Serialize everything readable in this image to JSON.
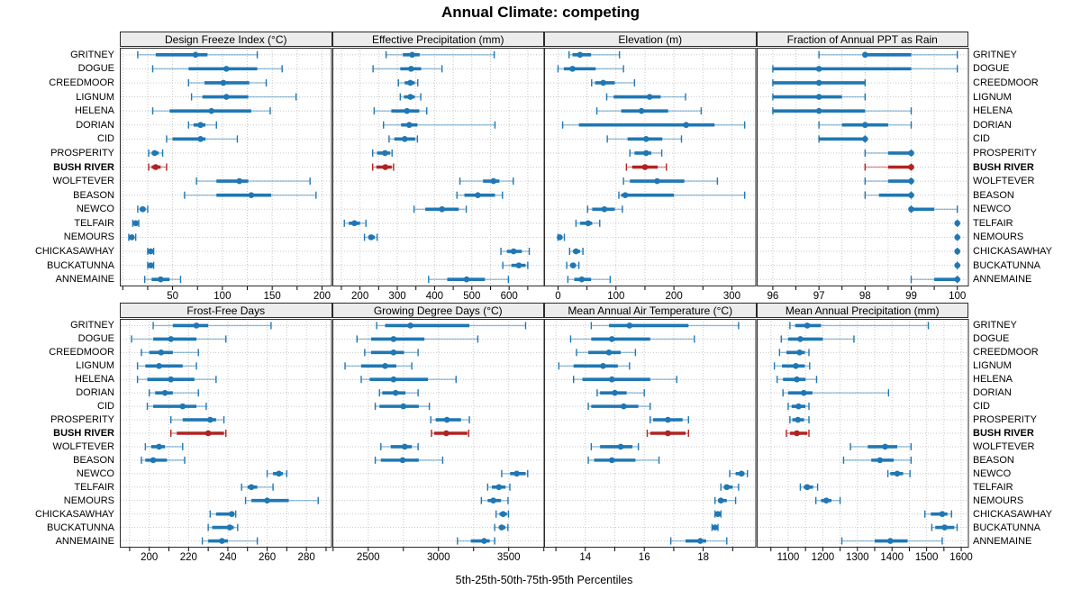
{
  "title": "Annual Climate: competing",
  "xlabel": "5th-25th-50th-75th-95th Percentiles",
  "colors": {
    "series": "#1f77b4",
    "highlight": "#b22222",
    "strip_bg": "#ececec",
    "grid": "#c8c8c8",
    "border": "#2b2b2b",
    "text": "#000000"
  },
  "highlight_site": "BUSH RIVER",
  "chart_data": {
    "type": "dotplot",
    "subtitle": "trellis of percentile ranges, 2 rows x 4 columns",
    "percentiles": [
      5,
      25,
      50,
      75,
      95
    ],
    "legend_note": "dot = median, thick bar = 25th-75th, thin bar with caps = 5th-95th",
    "sites": [
      "GRITNEY",
      "DOGUE",
      "CREEDMOOR",
      "LIGNUM",
      "HELENA",
      "DORIAN",
      "CID",
      "PROSPERITY",
      "BUSH RIVER",
      "WOLFTEVER",
      "BEASON",
      "NEWCO",
      "TELFAIR",
      "NEMOURS",
      "CHICKASAWHAY",
      "BUCKATUNNA",
      "ANNEMAINE"
    ],
    "panels": [
      {
        "title": "Design Freeze Index (°C)",
        "row": 0,
        "col": 0,
        "xlim": [
          -3,
          210
        ],
        "ticks": [
          50,
          100,
          150,
          200
        ],
        "data": [
          [
            15,
            33,
            73,
            85,
            135
          ],
          [
            30,
            66,
            104,
            135,
            160
          ],
          [
            66,
            82,
            101,
            127,
            144
          ],
          [
            69,
            80,
            104,
            126,
            174
          ],
          [
            30,
            47,
            89,
            129,
            148
          ],
          [
            66,
            71,
            78,
            83,
            94
          ],
          [
            44,
            50,
            78,
            83,
            115
          ],
          [
            26,
            29,
            32,
            36,
            40
          ],
          [
            26,
            29,
            33,
            38,
            44
          ],
          [
            74,
            94,
            117,
            126,
            188
          ],
          [
            62,
            94,
            129,
            149,
            194
          ],
          [
            15,
            17,
            20,
            23,
            25
          ],
          [
            10,
            11,
            13,
            14,
            16
          ],
          [
            6,
            8,
            9,
            11,
            13
          ],
          [
            25,
            27,
            28,
            30,
            31
          ],
          [
            25,
            26,
            28,
            30,
            31
          ],
          [
            22,
            29,
            38,
            47,
            58
          ]
        ]
      },
      {
        "title": "Effective Precipitation (mm)",
        "row": 0,
        "col": 1,
        "xlim": [
          126,
          695
        ],
        "ticks": [
          200,
          300,
          400,
          500,
          600
        ],
        "data": [
          [
            270,
            315,
            340,
            360,
            560
          ],
          [
            235,
            308,
            337,
            364,
            420
          ],
          [
            303,
            320,
            335,
            347,
            355
          ],
          [
            308,
            318,
            335,
            347,
            363
          ],
          [
            238,
            284,
            326,
            359,
            379
          ],
          [
            263,
            310,
            332,
            354,
            562
          ],
          [
            278,
            292,
            320,
            348,
            354
          ],
          [
            234,
            246,
            267,
            281,
            286
          ],
          [
            234,
            244,
            268,
            285,
            290
          ],
          [
            468,
            530,
            558,
            574,
            611
          ],
          [
            460,
            480,
            516,
            562,
            582
          ],
          [
            345,
            375,
            420,
            465,
            485
          ],
          [
            158,
            170,
            185,
            200,
            216
          ],
          [
            212,
            222,
            230,
            240,
            246
          ],
          [
            578,
            594,
            612,
            634,
            654
          ],
          [
            583,
            606,
            626,
            644,
            650
          ],
          [
            384,
            434,
            486,
            535,
            598
          ]
        ]
      },
      {
        "title": "Elevation (m)",
        "row": 0,
        "col": 2,
        "xlim": [
          -24,
          342
        ],
        "ticks": [
          0,
          100,
          200,
          300
        ],
        "data": [
          [
            19,
            25,
            38,
            57,
            106
          ],
          [
            0,
            10,
            25,
            65,
            113
          ],
          [
            58,
            64,
            78,
            98,
            132
          ],
          [
            84,
            96,
            158,
            177,
            220
          ],
          [
            67,
            109,
            144,
            190,
            247
          ],
          [
            8,
            36,
            221,
            270,
            322
          ],
          [
            85,
            120,
            152,
            180,
            213
          ],
          [
            124,
            132,
            152,
            161,
            179
          ],
          [
            118,
            128,
            150,
            172,
            187
          ],
          [
            113,
            124,
            171,
            218,
            275
          ],
          [
            105,
            109,
            116,
            200,
            322
          ],
          [
            51,
            59,
            80,
            98,
            111
          ],
          [
            31,
            38,
            52,
            59,
            72
          ],
          [
            0,
            1,
            3,
            6,
            11
          ],
          [
            20,
            26,
            31,
            38,
            43
          ],
          [
            15,
            21,
            26,
            31,
            36
          ],
          [
            17,
            28,
            41,
            57,
            90
          ]
        ]
      },
      {
        "title": "Fraction of Annual PPT as Rain",
        "row": 0,
        "col": 3,
        "xlim": [
          95.65,
          100.25
        ],
        "ticks": [
          96,
          97,
          98,
          99,
          100
        ],
        "data": [
          [
            97,
            98,
            98,
            99,
            100
          ],
          [
            96,
            96,
            97,
            99,
            100
          ],
          [
            96,
            96,
            97,
            98,
            98
          ],
          [
            96,
            96,
            97,
            97.5,
            98
          ],
          [
            96,
            96,
            97,
            98,
            99
          ],
          [
            97,
            97.5,
            98,
            98.5,
            99
          ],
          [
            97,
            97,
            98,
            98,
            98
          ],
          [
            98,
            98.5,
            99,
            99,
            99
          ],
          [
            98,
            98.5,
            99,
            99,
            99
          ],
          [
            98,
            98.5,
            99,
            99,
            99
          ],
          [
            98,
            98.3,
            99,
            99,
            99
          ],
          [
            99,
            99,
            99,
            99.5,
            100
          ],
          [
            100,
            100,
            100,
            100,
            100
          ],
          [
            100,
            100,
            100,
            100,
            100
          ],
          [
            100,
            100,
            100,
            100,
            100
          ],
          [
            100,
            100,
            100,
            100,
            100
          ],
          [
            99,
            99.5,
            100,
            100,
            100
          ]
        ]
      },
      {
        "title": "Frost-Free Days",
        "row": 1,
        "col": 0,
        "xlim": [
          185,
          293
        ],
        "ticks": [
          200,
          220,
          240,
          260,
          280
        ],
        "data": [
          [
            202,
            212,
            224,
            230,
            262
          ],
          [
            191,
            202,
            211,
            224,
            239
          ],
          [
            196,
            200,
            206,
            212,
            225
          ],
          [
            194,
            198,
            205,
            217,
            224
          ],
          [
            194,
            199,
            211,
            223,
            234
          ],
          [
            200,
            203,
            208,
            212,
            225
          ],
          [
            199,
            202,
            217,
            224,
            229
          ],
          [
            211,
            217,
            231,
            234,
            238
          ],
          [
            211,
            214,
            230,
            238,
            239
          ],
          [
            198,
            201,
            205,
            208,
            217
          ],
          [
            196,
            198,
            202,
            209,
            218
          ],
          [
            260,
            263,
            266,
            268,
            270
          ],
          [
            247,
            250,
            252,
            255,
            263
          ],
          [
            249,
            252,
            260,
            271,
            286
          ],
          [
            231,
            234,
            242,
            243,
            244
          ],
          [
            230,
            232,
            241,
            243,
            245
          ],
          [
            227,
            230,
            237,
            240,
            255
          ]
        ]
      },
      {
        "title": "Growing Degree Days (°C)",
        "row": 1,
        "col": 1,
        "xlim": [
          2245,
          3755
        ],
        "ticks": [
          2500,
          3000,
          3500
        ],
        "data": [
          [
            2560,
            2620,
            2800,
            3220,
            3620
          ],
          [
            2420,
            2520,
            2680,
            2900,
            3280
          ],
          [
            2475,
            2520,
            2680,
            2755,
            2855
          ],
          [
            2335,
            2450,
            2620,
            2700,
            2810
          ],
          [
            2450,
            2510,
            2680,
            2925,
            3125
          ],
          [
            2580,
            2600,
            2695,
            2765,
            2855
          ],
          [
            2550,
            2580,
            2750,
            2860,
            2935
          ],
          [
            2945,
            2980,
            3060,
            3160,
            3220
          ],
          [
            2950,
            2970,
            3055,
            3205,
            3215
          ],
          [
            2590,
            2660,
            2760,
            2810,
            2855
          ],
          [
            2550,
            2590,
            2745,
            2860,
            3030
          ],
          [
            3450,
            3510,
            3557,
            3620,
            3635
          ],
          [
            3350,
            3380,
            3430,
            3477,
            3508
          ],
          [
            3305,
            3350,
            3390,
            3445,
            3495
          ],
          [
            3410,
            3434,
            3460,
            3487,
            3498
          ],
          [
            3400,
            3430,
            3450,
            3477,
            3494
          ],
          [
            3135,
            3230,
            3325,
            3365,
            3400
          ]
        ]
      },
      {
        "title": "Mean Annual Air Temperature (°C)",
        "row": 1,
        "col": 2,
        "xlim": [
          12.6,
          19.8
        ],
        "ticks": [
          14,
          16,
          18
        ],
        "data": [
          [
            14.2,
            14.8,
            15.5,
            17.5,
            19.2
          ],
          [
            13.5,
            14.2,
            14.9,
            16.2,
            17.7
          ],
          [
            13.7,
            14.1,
            14.8,
            15.2,
            15.7
          ],
          [
            13.1,
            13.6,
            14.6,
            15.1,
            15.5
          ],
          [
            13.6,
            13.9,
            14.9,
            16.2,
            17.1
          ],
          [
            14.4,
            14.5,
            15.0,
            15.4,
            16.0
          ],
          [
            14.1,
            14.2,
            15.3,
            15.8,
            16.2
          ],
          [
            16.2,
            16.3,
            16.8,
            17.3,
            17.5
          ],
          [
            16.1,
            16.2,
            16.8,
            17.4,
            17.5
          ],
          [
            14.2,
            14.5,
            15.2,
            15.6,
            15.8
          ],
          [
            14.1,
            14.3,
            14.9,
            15.7,
            16.5
          ],
          [
            18.9,
            19.1,
            19.3,
            19.4,
            19.5
          ],
          [
            18.6,
            18.7,
            18.8,
            19.0,
            19.2
          ],
          [
            18.4,
            18.5,
            18.6,
            18.8,
            19.1
          ],
          [
            18.4,
            18.45,
            18.5,
            18.55,
            18.6
          ],
          [
            18.3,
            18.35,
            18.4,
            18.45,
            18.5
          ],
          [
            16.9,
            17.4,
            17.9,
            18.1,
            18.8
          ]
        ]
      },
      {
        "title": "Mean Annual Precipitation (mm)",
        "row": 1,
        "col": 3,
        "xlim": [
          1009,
          1622
        ],
        "ticks": [
          1100,
          1200,
          1300,
          1400,
          1500,
          1600
        ],
        "data": [
          [
            1105,
            1120,
            1155,
            1195,
            1505
          ],
          [
            1080,
            1100,
            1135,
            1200,
            1290
          ],
          [
            1075,
            1095,
            1133,
            1148,
            1160
          ],
          [
            1060,
            1082,
            1122,
            1148,
            1162
          ],
          [
            1068,
            1085,
            1125,
            1150,
            1182
          ],
          [
            1085,
            1100,
            1145,
            1170,
            1390
          ],
          [
            1100,
            1110,
            1130,
            1150,
            1160
          ],
          [
            1105,
            1112,
            1128,
            1146,
            1160
          ],
          [
            1095,
            1105,
            1125,
            1155,
            1160
          ],
          [
            1280,
            1330,
            1380,
            1415,
            1455
          ],
          [
            1260,
            1340,
            1365,
            1405,
            1455
          ],
          [
            1388,
            1395,
            1415,
            1432,
            1452
          ],
          [
            1135,
            1145,
            1155,
            1172,
            1185
          ],
          [
            1180,
            1195,
            1210,
            1225,
            1250
          ],
          [
            1495,
            1512,
            1545,
            1560,
            1572
          ],
          [
            1515,
            1525,
            1552,
            1580,
            1588
          ],
          [
            1255,
            1350,
            1395,
            1445,
            1545
          ]
        ]
      }
    ]
  }
}
